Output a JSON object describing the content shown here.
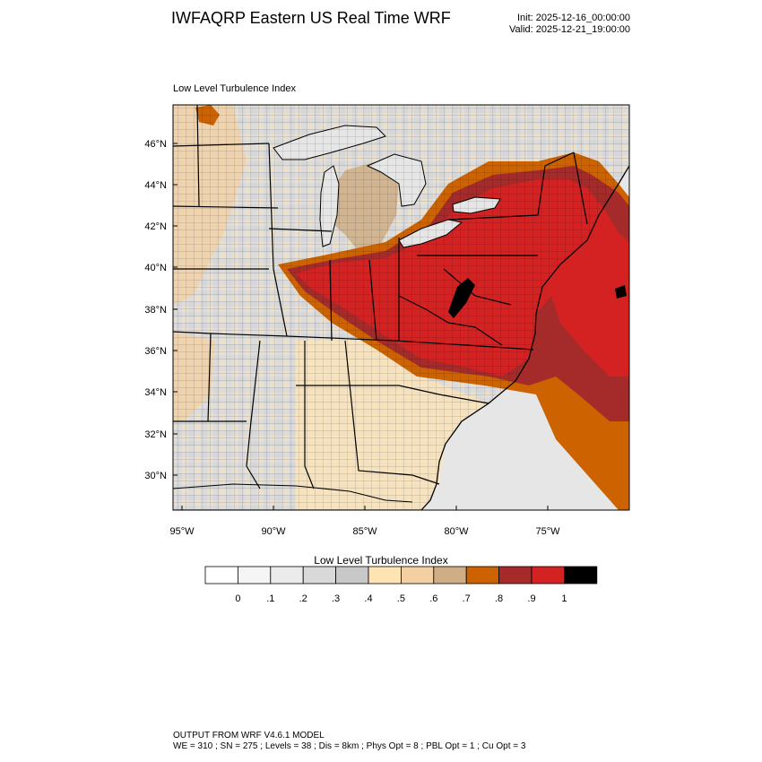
{
  "header": {
    "title": "IWFAQRP Eastern US Real Time WRF",
    "init": "Init: 2025-12-16_00:00:00",
    "valid": "Valid: 2025-12-21_19:00:00"
  },
  "map": {
    "subtitle": "Low Level Turbulence Index",
    "lat_labels": [
      "46°N",
      "44°N",
      "42°N",
      "40°N",
      "38°N",
      "36°N",
      "34°N",
      "32°N",
      "30°N"
    ],
    "lon_labels": [
      "95°W",
      "90°W",
      "85°W",
      "80°W",
      "75°W"
    ]
  },
  "legend": {
    "title": "Low Level Turbulence Index",
    "tick_labels": [
      "0",
      ".1",
      ".2",
      ".3",
      ".4",
      ".5",
      ".6",
      ".7",
      ".8",
      ".9",
      "1"
    ],
    "colors": [
      "#ffffff",
      "#f5f5f5",
      "#ebebeb",
      "#d9d9d9",
      "#c8c8c8",
      "#ffe4b3",
      "#f3d0a1",
      "#cfae86",
      "#cc6200",
      "#a52a2a",
      "#d42222",
      "#000000"
    ]
  },
  "footer": {
    "line1": "OUTPUT FROM WRF V4.6.1 MODEL",
    "line2": "WE = 310 ; SN = 275 ; Levels = 38 ; Dis = 8km ; Phys Opt = 8 ; PBL Opt = 1 ; Cu Opt = 3"
  }
}
